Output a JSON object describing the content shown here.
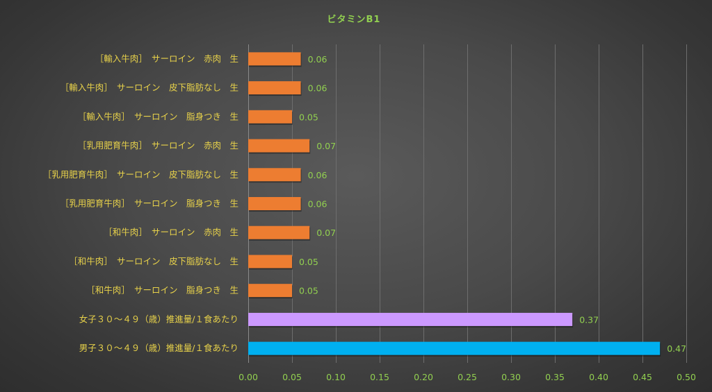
{
  "chart_data": {
    "type": "bar",
    "orientation": "horizontal",
    "title": "ビタミンB1",
    "xlim": [
      0,
      0.5
    ],
    "xticks": [
      "0.00",
      "0.05",
      "0.10",
      "0.15",
      "0.20",
      "0.25",
      "0.30",
      "0.35",
      "0.40",
      "0.45",
      "0.50"
    ],
    "grid": true,
    "legend": "none",
    "categories": [
      "［輸入牛肉］　サーロイン　赤肉　生",
      "［輸入牛肉］　サーロイン　皮下脂肪なし　生",
      "［輸入牛肉］　サーロイン　脂身つき　生",
      "［乳用肥育牛肉］　サーロイン　赤肉　生",
      "［乳用肥育牛肉］　サーロイン　皮下脂肪なし　生",
      "［乳用肥育牛肉］　サーロイン　脂身つき　生",
      "［和牛肉］　サーロイン　赤肉　生",
      "［和牛肉］　サーロイン　皮下脂肪なし　生",
      "［和牛肉］　サーロイン　脂身つき　生",
      "女子３０～４９（歳）推進量/１食あたり",
      "男子３０～４９（歳）推進量/１食あたり"
    ],
    "values": [
      0.06,
      0.06,
      0.05,
      0.07,
      0.06,
      0.06,
      0.07,
      0.05,
      0.05,
      0.37,
      0.47
    ],
    "value_labels": [
      "0.06",
      "0.06",
      "0.05",
      "0.07",
      "0.06",
      "0.06",
      "0.07",
      "0.05",
      "0.05",
      "0.37",
      "0.47"
    ],
    "colors": [
      "#ed7d31",
      "#ed7d31",
      "#ed7d31",
      "#ed7d31",
      "#ed7d31",
      "#ed7d31",
      "#ed7d31",
      "#ed7d31",
      "#ed7d31",
      "#cc99ff",
      "#00b0f0"
    ]
  }
}
